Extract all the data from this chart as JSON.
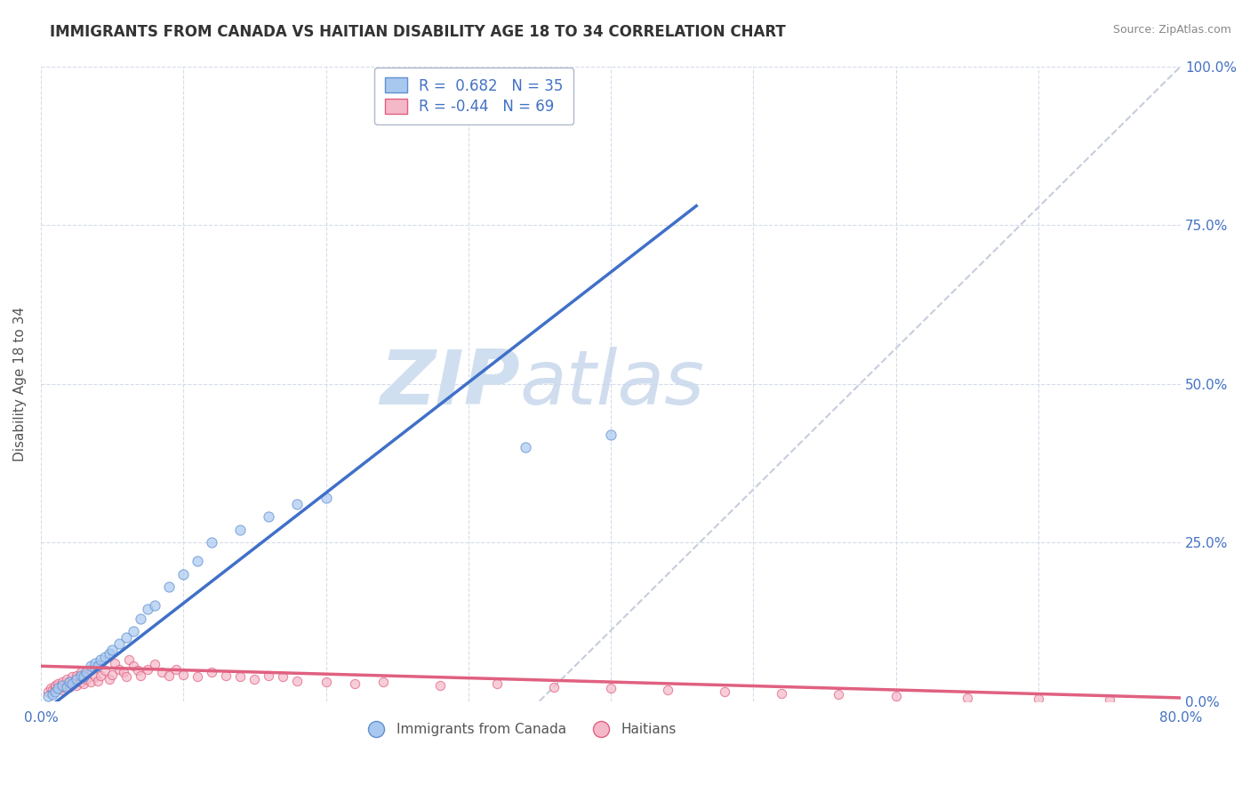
{
  "title": "IMMIGRANTS FROM CANADA VS HAITIAN DISABILITY AGE 18 TO 34 CORRELATION CHART",
  "source": "Source: ZipAtlas.com",
  "ylabel": "Disability Age 18 to 34",
  "xlim": [
    0.0,
    0.8
  ],
  "ylim": [
    0.0,
    1.0
  ],
  "xticks": [
    0.0,
    0.1,
    0.2,
    0.3,
    0.4,
    0.5,
    0.6,
    0.7,
    0.8
  ],
  "xtick_labels": [
    "0.0%",
    "",
    "",
    "",
    "",
    "",
    "",
    "",
    "80.0%"
  ],
  "ytick_labels": [
    "0.0%",
    "25.0%",
    "50.0%",
    "75.0%",
    "100.0%"
  ],
  "yticks": [
    0.0,
    0.25,
    0.5,
    0.75,
    1.0
  ],
  "blue_R": 0.682,
  "blue_N": 35,
  "pink_R": -0.44,
  "pink_N": 69,
  "blue_color": "#a8c8f0",
  "pink_color": "#f5b8c8",
  "blue_edge_color": "#6090d0",
  "pink_edge_color": "#e06080",
  "blue_line_color": "#4070c8",
  "pink_line_color": "#e06080",
  "ref_line_color": "#c0c8d8",
  "watermark_color": "#d0dff0",
  "background_color": "#ffffff",
  "grid_color": "#d0d8e8",
  "title_color": "#333333",
  "axis_label_color": "#4472c4",
  "blue_scatter_x": [
    0.005,
    0.008,
    0.01,
    0.012,
    0.015,
    0.018,
    0.02,
    0.022,
    0.025,
    0.028,
    0.03,
    0.032,
    0.035,
    0.038,
    0.04,
    0.042,
    0.045,
    0.048,
    0.05,
    0.055,
    0.06,
    0.065,
    0.07,
    0.075,
    0.08,
    0.09,
    0.1,
    0.11,
    0.12,
    0.14,
    0.16,
    0.18,
    0.2,
    0.34,
    0.4
  ],
  "blue_scatter_y": [
    0.008,
    0.01,
    0.015,
    0.02,
    0.025,
    0.022,
    0.03,
    0.028,
    0.035,
    0.04,
    0.038,
    0.045,
    0.055,
    0.06,
    0.055,
    0.065,
    0.07,
    0.075,
    0.08,
    0.09,
    0.1,
    0.11,
    0.13,
    0.145,
    0.15,
    0.18,
    0.2,
    0.22,
    0.25,
    0.27,
    0.29,
    0.31,
    0.32,
    0.4,
    0.42
  ],
  "pink_scatter_x": [
    0.005,
    0.007,
    0.008,
    0.01,
    0.01,
    0.012,
    0.012,
    0.015,
    0.015,
    0.015,
    0.018,
    0.018,
    0.02,
    0.02,
    0.022,
    0.022,
    0.025,
    0.025,
    0.028,
    0.028,
    0.03,
    0.03,
    0.032,
    0.035,
    0.035,
    0.038,
    0.04,
    0.04,
    0.042,
    0.045,
    0.048,
    0.05,
    0.052,
    0.055,
    0.058,
    0.06,
    0.062,
    0.065,
    0.068,
    0.07,
    0.075,
    0.08,
    0.085,
    0.09,
    0.095,
    0.1,
    0.11,
    0.12,
    0.13,
    0.14,
    0.15,
    0.16,
    0.17,
    0.18,
    0.2,
    0.22,
    0.24,
    0.28,
    0.32,
    0.36,
    0.4,
    0.44,
    0.48,
    0.52,
    0.56,
    0.6,
    0.65,
    0.7,
    0.75
  ],
  "pink_scatter_y": [
    0.015,
    0.02,
    0.018,
    0.022,
    0.025,
    0.02,
    0.028,
    0.018,
    0.022,
    0.03,
    0.025,
    0.035,
    0.022,
    0.03,
    0.028,
    0.038,
    0.025,
    0.04,
    0.03,
    0.045,
    0.028,
    0.042,
    0.035,
    0.03,
    0.05,
    0.038,
    0.032,
    0.055,
    0.04,
    0.048,
    0.035,
    0.042,
    0.06,
    0.05,
    0.045,
    0.038,
    0.065,
    0.055,
    0.048,
    0.04,
    0.05,
    0.058,
    0.045,
    0.04,
    0.05,
    0.042,
    0.038,
    0.045,
    0.04,
    0.038,
    0.035,
    0.04,
    0.038,
    0.032,
    0.03,
    0.028,
    0.03,
    0.025,
    0.028,
    0.022,
    0.02,
    0.018,
    0.015,
    0.012,
    0.01,
    0.008,
    0.005,
    0.003,
    0.002
  ],
  "blue_line_x0": 0.0,
  "blue_line_y0": -0.02,
  "blue_line_x1": 0.46,
  "blue_line_y1": 0.78,
  "pink_line_x0": 0.0,
  "pink_line_y0": 0.055,
  "pink_line_x1": 0.8,
  "pink_line_y1": 0.005,
  "ref_line_x0": 0.35,
  "ref_line_y0": 0.0,
  "ref_line_x1": 0.8,
  "ref_line_y1": 1.0
}
